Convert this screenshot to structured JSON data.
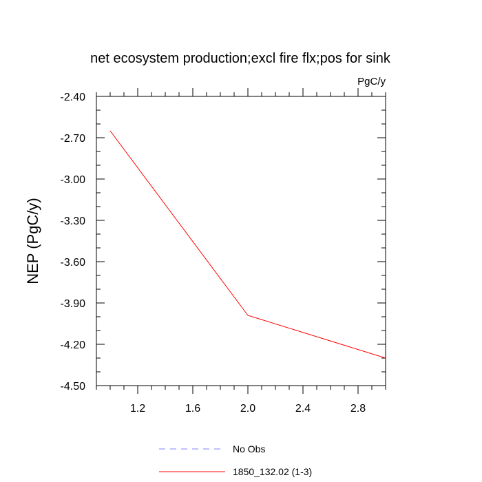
{
  "chart_data": {
    "type": "line",
    "title": "net ecosystem production;excl fire flx;pos for sink",
    "units": "PgC/y",
    "ylabel": "NEP  (PgC/y)",
    "xlabel": "",
    "xlim": [
      0.9,
      3.0
    ],
    "ylim": [
      -4.5,
      -2.4
    ],
    "xticks": [
      1.2,
      1.6,
      2.0,
      2.4,
      2.8
    ],
    "xtick_labels": [
      "1.2",
      "1.6",
      "2.0",
      "2.4",
      "2.8"
    ],
    "yticks": [
      -2.4,
      -2.7,
      -3.0,
      -3.3,
      -3.6,
      -3.9,
      -4.2,
      -4.5
    ],
    "ytick_labels": [
      "-2.40",
      "-2.70",
      "-3.00",
      "-3.30",
      "-3.60",
      "-3.90",
      "-4.20",
      "-4.50"
    ],
    "grid": false,
    "legend_position": "bottom",
    "series": [
      {
        "name": "1850_132.02 (1-3)",
        "color": "#ff0000",
        "dash": "solid",
        "x": [
          1.0,
          2.0,
          3.0
        ],
        "y": [
          -2.65,
          -3.99,
          -4.3
        ]
      }
    ],
    "legend": [
      {
        "label": "No Obs",
        "color": "#8080ff",
        "dash": "dashed"
      },
      {
        "label": "1850_132.02 (1-3)",
        "color": "#ff0000",
        "dash": "solid"
      }
    ]
  }
}
